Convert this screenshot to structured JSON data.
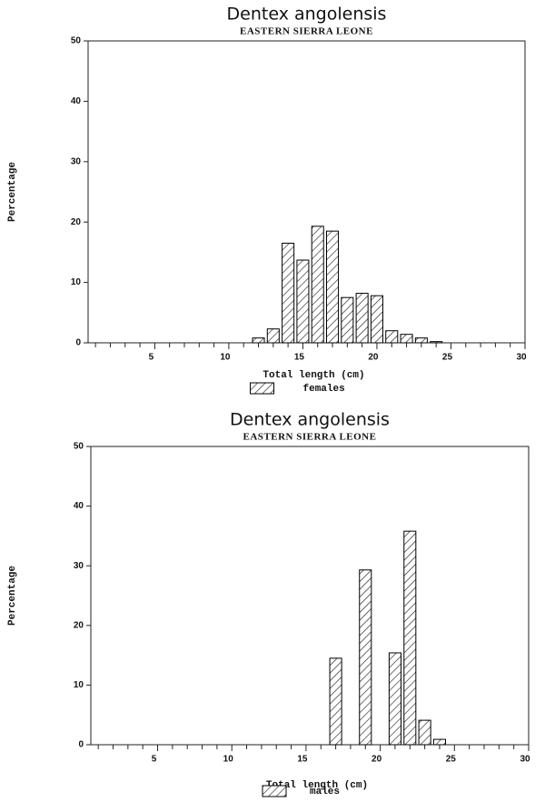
{
  "chart_data": [
    {
      "type": "bar",
      "title": "Dentex angolensis",
      "subtitle": "EASTERN SIERRA LEONE",
      "y_label": "Percentage",
      "x_label": "Total length (cm)",
      "x": [
        12,
        13,
        14,
        15,
        16,
        17,
        18,
        19,
        20,
        21,
        22,
        23,
        24
      ],
      "series": [
        {
          "name": "females",
          "color": "#000000",
          "values": [
            0.8,
            2.3,
            16.5,
            13.7,
            19.3,
            18.5,
            7.5,
            8.2,
            7.8,
            2.0,
            1.4,
            0.8,
            0.2
          ]
        }
      ],
      "xlim": [
        0.5,
        30
      ],
      "xticks": [
        5,
        10,
        15,
        20,
        25,
        30
      ],
      "xminorticks": [
        1,
        2,
        3,
        4,
        6,
        7,
        8,
        9,
        11,
        12,
        13,
        14,
        16,
        17,
        18,
        19,
        21,
        22,
        23,
        24,
        26,
        27,
        28,
        29
      ],
      "ylim": [
        0,
        50
      ],
      "yticks": [
        0,
        10,
        20,
        30,
        40,
        50
      ]
    },
    {
      "type": "bar",
      "title": "Dentex angolensis",
      "subtitle": "EASTERN SIERRA LEONE",
      "y_label": "Percentage",
      "x_label": "Total length (cm)",
      "x": [
        17,
        19,
        21,
        22,
        23,
        24
      ],
      "series": [
        {
          "name": "males",
          "color": "#000000",
          "values": [
            14.5,
            29.3,
            15.4,
            35.8,
            4.1,
            0.9
          ]
        }
      ],
      "xlim": [
        0.5,
        30
      ],
      "xticks": [
        5,
        10,
        15,
        20,
        25,
        30
      ],
      "xminorticks": [
        1,
        2,
        3,
        4,
        6,
        7,
        8,
        9,
        11,
        12,
        13,
        14,
        16,
        17,
        18,
        19,
        21,
        22,
        23,
        24,
        26,
        27,
        28,
        29
      ],
      "ylim": [
        0,
        50
      ],
      "yticks": [
        0,
        10,
        20,
        30,
        40,
        50
      ]
    }
  ]
}
